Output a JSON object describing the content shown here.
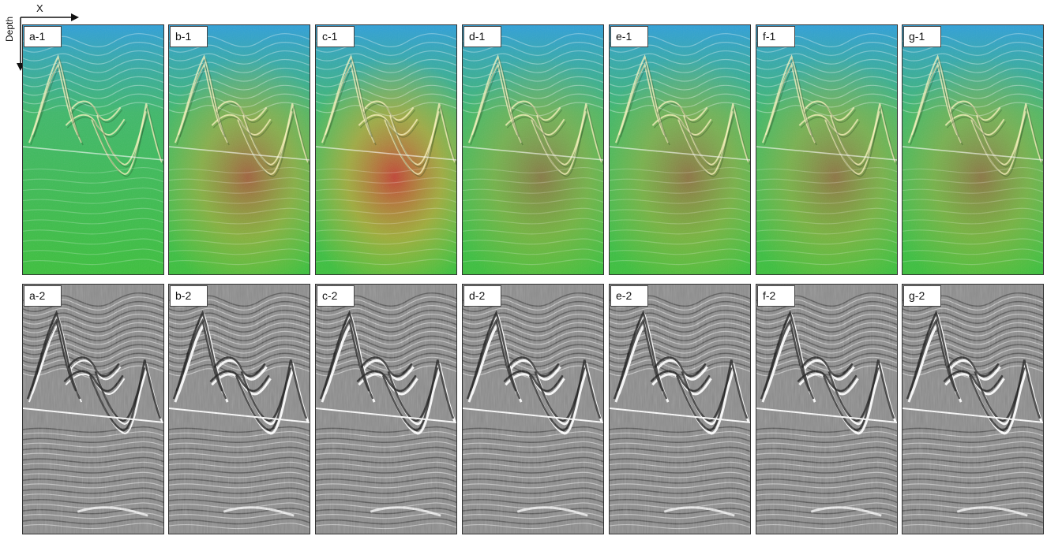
{
  "figure": {
    "axis_x_label": "X",
    "axis_depth_label": "Depth",
    "colors": {
      "velocity_low": "#2fa0d8",
      "velocity_mid": "#3cc03c",
      "velocity_high": "#d83030",
      "image_gray": "#8c8c8c",
      "border": "#333333"
    },
    "rows": [
      {
        "type": "velocity",
        "panels": [
          {
            "label": "a-1",
            "anomaly": 0.0
          },
          {
            "label": "b-1",
            "anomaly": 0.75
          },
          {
            "label": "c-1",
            "anomaly": 1.0
          },
          {
            "label": "d-1",
            "anomaly": 0.55
          },
          {
            "label": "e-1",
            "anomaly": 0.6
          },
          {
            "label": "f-1",
            "anomaly": 0.6
          },
          {
            "label": "g-1",
            "anomaly": 0.58
          }
        ]
      },
      {
        "type": "image",
        "panels": [
          {
            "label": "a-2"
          },
          {
            "label": "b-2"
          },
          {
            "label": "c-2"
          },
          {
            "label": "d-2"
          },
          {
            "label": "e-2"
          },
          {
            "label": "f-2"
          },
          {
            "label": "g-2"
          }
        ]
      }
    ]
  }
}
